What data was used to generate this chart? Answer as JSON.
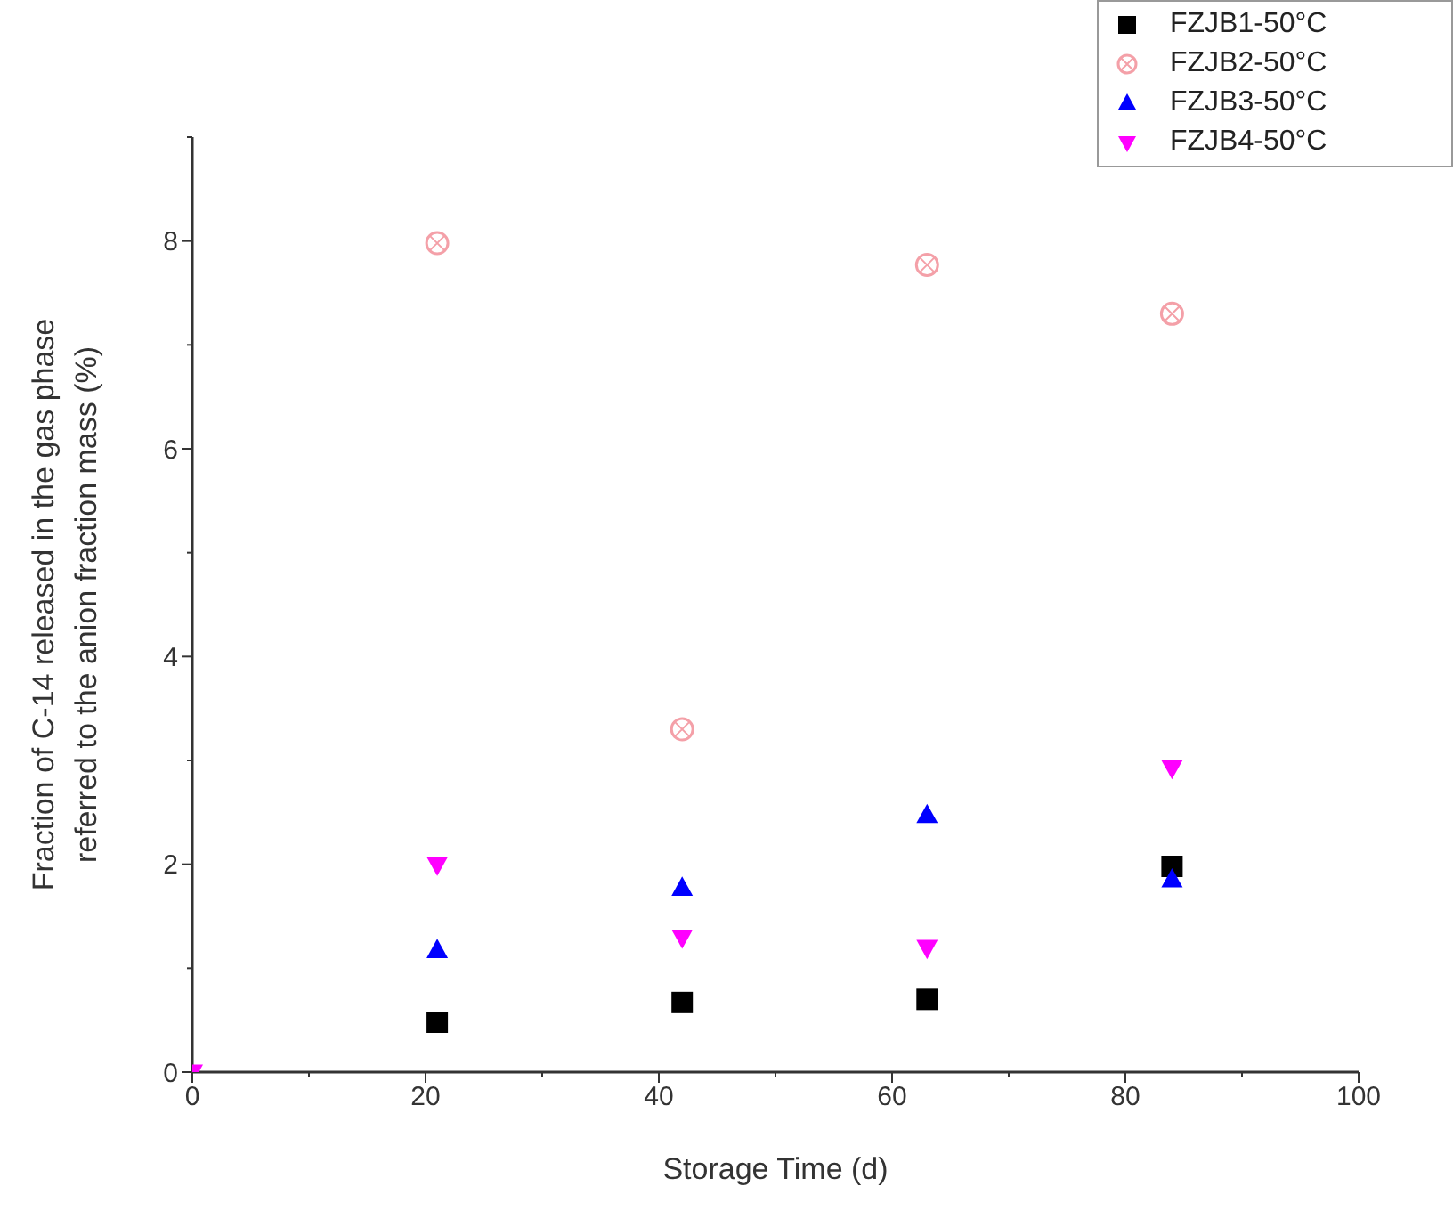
{
  "chart_data": {
    "type": "scatter",
    "xlabel": "Storage Time (d)",
    "ylabel": "Fraction of C-14 released in the gas phase\nreferred to the anion fraction mass (%)",
    "x": [
      0,
      21,
      42,
      63,
      84
    ],
    "series": [
      {
        "name": "FZJB1-50°C",
        "color": "#000000",
        "marker": "square",
        "values": [
          null,
          0.48,
          0.67,
          0.7,
          1.98
        ]
      },
      {
        "name": "FZJB2-50°C",
        "color": "#f4a0a8",
        "marker": "circle",
        "values": [
          null,
          7.98,
          3.3,
          7.77,
          7.3
        ]
      },
      {
        "name": "FZJB3-50°C",
        "color": "#0000ff",
        "marker": "triangle",
        "values": [
          null,
          1.17,
          1.77,
          2.47,
          1.85
        ]
      },
      {
        "name": "FZJB4-50°C",
        "color": "#ff00ff",
        "marker": "triangle-down",
        "values": [
          0,
          2.0,
          1.3,
          1.2,
          2.93
        ]
      }
    ],
    "xlim": [
      0,
      100
    ],
    "xticks": [
      0,
      20,
      40,
      60,
      80,
      100
    ],
    "ylim": [
      0,
      9
    ],
    "yticks": [
      0,
      2,
      4,
      6,
      8
    ],
    "grid": false,
    "legend": "top right"
  }
}
